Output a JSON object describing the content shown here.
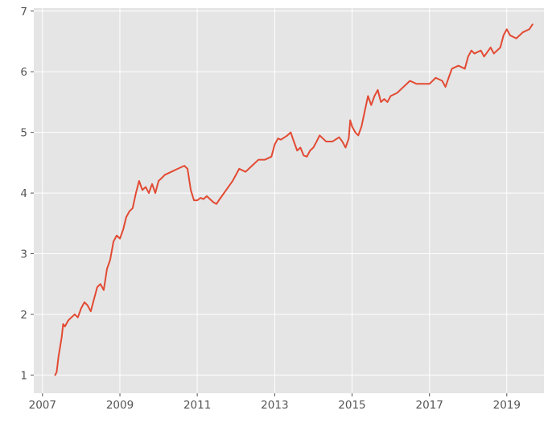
{
  "chart_data": {
    "type": "line",
    "title": "",
    "xlabel": "",
    "ylabel": "",
    "x_axis": "date",
    "xlim": [
      "2006-10-11",
      "2019-12-18"
    ],
    "ylim": [
      0.7,
      7.05
    ],
    "xticks": [
      "2007",
      "2009",
      "2011",
      "2013",
      "2015",
      "2017",
      "2019"
    ],
    "yticks": [
      1,
      2,
      3,
      4,
      5,
      6,
      7
    ],
    "grid": true,
    "legend": "none",
    "colors": {
      "background": "#E5E5E5",
      "grid": "#FFFFFF",
      "line": "#E24A33",
      "tick_text": "#555555"
    },
    "series": [
      {
        "color": "#E24A33",
        "points": [
          [
            "2007-05-01",
            1.0
          ],
          [
            "2007-05-15",
            1.05
          ],
          [
            "2007-06-01",
            1.3
          ],
          [
            "2007-06-15",
            1.45
          ],
          [
            "2007-07-01",
            1.62
          ],
          [
            "2007-07-15",
            1.84
          ],
          [
            "2007-08-01",
            1.8
          ],
          [
            "2007-09-01",
            1.9
          ],
          [
            "2007-10-01",
            1.95
          ],
          [
            "2007-11-01",
            2.0
          ],
          [
            "2007-12-01",
            1.95
          ],
          [
            "2008-01-01",
            2.1
          ],
          [
            "2008-02-01",
            2.2
          ],
          [
            "2008-03-01",
            2.15
          ],
          [
            "2008-04-01",
            2.05
          ],
          [
            "2008-05-01",
            2.25
          ],
          [
            "2008-06-01",
            2.45
          ],
          [
            "2008-07-01",
            2.5
          ],
          [
            "2008-08-01",
            2.4
          ],
          [
            "2008-09-01",
            2.75
          ],
          [
            "2008-10-01",
            2.9
          ],
          [
            "2008-11-01",
            3.2
          ],
          [
            "2008-12-01",
            3.3
          ],
          [
            "2009-01-01",
            3.25
          ],
          [
            "2009-02-01",
            3.4
          ],
          [
            "2009-03-01",
            3.6
          ],
          [
            "2009-04-01",
            3.7
          ],
          [
            "2009-05-01",
            3.75
          ],
          [
            "2009-06-01",
            4.0
          ],
          [
            "2009-07-01",
            4.2
          ],
          [
            "2009-08-01",
            4.05
          ],
          [
            "2009-09-01",
            4.1
          ],
          [
            "2009-10-01",
            4.0
          ],
          [
            "2009-11-01",
            4.15
          ],
          [
            "2009-12-01",
            4.0
          ],
          [
            "2010-01-01",
            4.2
          ],
          [
            "2010-02-01",
            4.25
          ],
          [
            "2010-03-01",
            4.3
          ],
          [
            "2010-05-01",
            4.35
          ],
          [
            "2010-07-01",
            4.4
          ],
          [
            "2010-09-01",
            4.45
          ],
          [
            "2010-10-01",
            4.4
          ],
          [
            "2010-11-01",
            4.05
          ],
          [
            "2010-12-01",
            3.88
          ],
          [
            "2011-01-01",
            3.88
          ],
          [
            "2011-02-01",
            3.92
          ],
          [
            "2011-03-01",
            3.9
          ],
          [
            "2011-04-01",
            3.95
          ],
          [
            "2011-05-01",
            3.9
          ],
          [
            "2011-06-01",
            3.85
          ],
          [
            "2011-07-01",
            3.82
          ],
          [
            "2011-08-01",
            3.9
          ],
          [
            "2011-10-01",
            4.05
          ],
          [
            "2011-12-01",
            4.2
          ],
          [
            "2012-02-01",
            4.4
          ],
          [
            "2012-04-01",
            4.35
          ],
          [
            "2012-06-01",
            4.45
          ],
          [
            "2012-08-01",
            4.55
          ],
          [
            "2012-10-01",
            4.55
          ],
          [
            "2012-12-01",
            4.6
          ],
          [
            "2013-01-01",
            4.8
          ],
          [
            "2013-02-01",
            4.9
          ],
          [
            "2013-03-01",
            4.88
          ],
          [
            "2013-05-01",
            4.95
          ],
          [
            "2013-06-01",
            5.0
          ],
          [
            "2013-07-01",
            4.85
          ],
          [
            "2013-08-01",
            4.7
          ],
          [
            "2013-09-01",
            4.75
          ],
          [
            "2013-10-01",
            4.62
          ],
          [
            "2013-11-01",
            4.6
          ],
          [
            "2013-12-01",
            4.7
          ],
          [
            "2014-01-01",
            4.75
          ],
          [
            "2014-02-01",
            4.85
          ],
          [
            "2014-03-01",
            4.95
          ],
          [
            "2014-04-01",
            4.9
          ],
          [
            "2014-05-01",
            4.85
          ],
          [
            "2014-07-01",
            4.85
          ],
          [
            "2014-09-01",
            4.92
          ],
          [
            "2014-10-01",
            4.85
          ],
          [
            "2014-11-01",
            4.75
          ],
          [
            "2014-12-01",
            4.9
          ],
          [
            "2014-12-15",
            5.2
          ],
          [
            "2015-01-01",
            5.1
          ],
          [
            "2015-02-01",
            5.0
          ],
          [
            "2015-03-01",
            4.95
          ],
          [
            "2015-04-01",
            5.1
          ],
          [
            "2015-05-01",
            5.35
          ],
          [
            "2015-06-01",
            5.6
          ],
          [
            "2015-07-01",
            5.45
          ],
          [
            "2015-08-01",
            5.6
          ],
          [
            "2015-09-01",
            5.7
          ],
          [
            "2015-10-01",
            5.5
          ],
          [
            "2015-11-01",
            5.55
          ],
          [
            "2015-12-01",
            5.5
          ],
          [
            "2016-01-01",
            5.6
          ],
          [
            "2016-03-01",
            5.65
          ],
          [
            "2016-05-01",
            5.75
          ],
          [
            "2016-07-01",
            5.85
          ],
          [
            "2016-09-01",
            5.8
          ],
          [
            "2016-11-01",
            5.8
          ],
          [
            "2017-01-01",
            5.8
          ],
          [
            "2017-03-01",
            5.9
          ],
          [
            "2017-05-01",
            5.85
          ],
          [
            "2017-06-01",
            5.75
          ],
          [
            "2017-07-01",
            5.9
          ],
          [
            "2017-08-01",
            6.05
          ],
          [
            "2017-10-01",
            6.1
          ],
          [
            "2017-12-01",
            6.05
          ],
          [
            "2018-01-01",
            6.25
          ],
          [
            "2018-02-01",
            6.35
          ],
          [
            "2018-03-01",
            6.3
          ],
          [
            "2018-05-01",
            6.35
          ],
          [
            "2018-06-01",
            6.25
          ],
          [
            "2018-08-01",
            6.4
          ],
          [
            "2018-09-01",
            6.3
          ],
          [
            "2018-11-01",
            6.4
          ],
          [
            "2018-12-01",
            6.6
          ],
          [
            "2019-01-01",
            6.7
          ],
          [
            "2019-02-01",
            6.6
          ],
          [
            "2019-04-01",
            6.55
          ],
          [
            "2019-06-01",
            6.65
          ],
          [
            "2019-08-01",
            6.7
          ],
          [
            "2019-09-01",
            6.78
          ]
        ]
      }
    ]
  }
}
